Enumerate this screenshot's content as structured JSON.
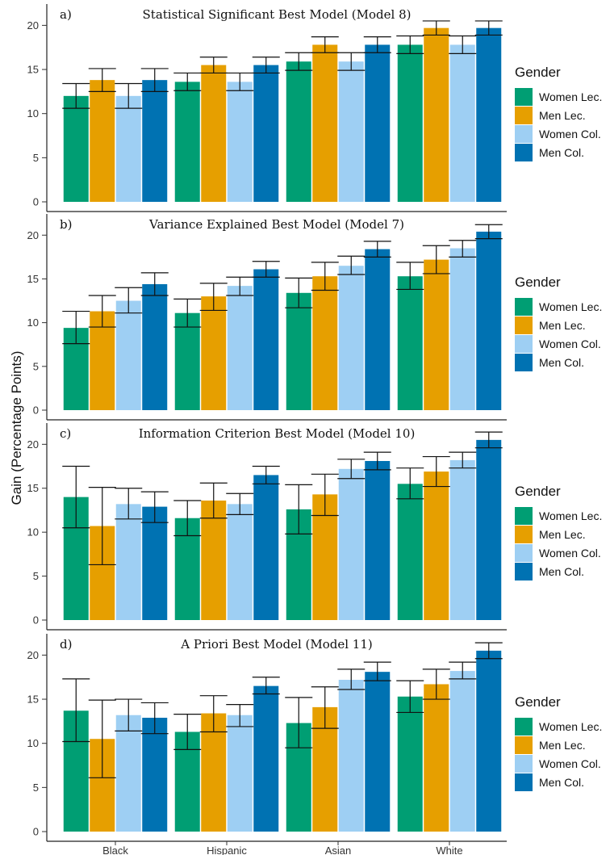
{
  "y_axis_label": "Gain (Percentage Points)",
  "legend": {
    "title": "Gender",
    "entries": [
      {
        "label": "Women Lec.",
        "color": "#009E73"
      },
      {
        "label": "Men Lec.",
        "color": "#E69F00"
      },
      {
        "label": "Women Col.",
        "color": "#9ECFF3"
      },
      {
        "label": "Men Col.",
        "color": "#0072B2"
      }
    ]
  },
  "chart_data": [
    {
      "type": "bar",
      "panel": "a)",
      "title": "Statistical Significant Best Model (Model 8)",
      "categories": [
        "Black",
        "Hispanic",
        "Asian",
        "White"
      ],
      "ylim": [
        0,
        21.5
      ],
      "yticks": [
        0,
        5,
        10,
        15,
        20
      ],
      "series": [
        {
          "name": "Women Lec.",
          "values": [
            12.0,
            13.6,
            15.9,
            17.8
          ],
          "err_low": [
            10.6,
            12.6,
            14.9,
            16.8
          ],
          "err_high": [
            13.4,
            14.6,
            16.9,
            18.8
          ]
        },
        {
          "name": "Men Lec.",
          "values": [
            13.8,
            15.5,
            17.8,
            19.7
          ],
          "err_low": [
            12.5,
            14.6,
            16.9,
            18.9
          ],
          "err_high": [
            15.1,
            16.4,
            18.7,
            20.5
          ]
        },
        {
          "name": "Women Col.",
          "values": [
            12.0,
            13.6,
            15.9,
            17.8
          ],
          "err_low": [
            10.6,
            12.6,
            14.9,
            16.8
          ],
          "err_high": [
            13.4,
            14.6,
            16.9,
            18.8
          ]
        },
        {
          "name": "Men Col.",
          "values": [
            13.8,
            15.5,
            17.8,
            19.7
          ],
          "err_low": [
            12.5,
            14.6,
            16.9,
            18.9
          ],
          "err_high": [
            15.1,
            16.4,
            18.7,
            20.5
          ]
        }
      ]
    },
    {
      "type": "bar",
      "panel": "b)",
      "title": "Variance Explained Best Model (Model 7)",
      "categories": [
        "Black",
        "Hispanic",
        "Asian",
        "White"
      ],
      "ylim": [
        0,
        21.5
      ],
      "yticks": [
        0,
        5,
        10,
        15,
        20
      ],
      "series": [
        {
          "name": "Women Lec.",
          "values": [
            9.4,
            11.1,
            13.4,
            15.3
          ],
          "err_low": [
            7.6,
            9.5,
            11.7,
            13.8
          ],
          "err_high": [
            11.3,
            12.7,
            15.1,
            16.9
          ]
        },
        {
          "name": "Men Lec.",
          "values": [
            11.3,
            13.0,
            15.3,
            17.2
          ],
          "err_low": [
            9.5,
            11.4,
            13.7,
            15.6
          ],
          "err_high": [
            13.1,
            14.5,
            16.9,
            18.8
          ]
        },
        {
          "name": "Women Col.",
          "values": [
            12.5,
            14.2,
            16.5,
            18.5
          ],
          "err_low": [
            11.1,
            13.1,
            15.5,
            17.5
          ],
          "err_high": [
            14.0,
            15.2,
            17.6,
            19.4
          ]
        },
        {
          "name": "Men Col.",
          "values": [
            14.4,
            16.1,
            18.4,
            20.4
          ],
          "err_low": [
            13.1,
            15.2,
            17.5,
            19.6
          ],
          "err_high": [
            15.7,
            17.0,
            19.3,
            21.2
          ]
        }
      ]
    },
    {
      "type": "bar",
      "panel": "c)",
      "title": "Information Criterion Best Model (Model 10)",
      "categories": [
        "Black",
        "Hispanic",
        "Asian",
        "White"
      ],
      "ylim": [
        0,
        21.5
      ],
      "yticks": [
        0,
        5,
        10,
        15,
        20
      ],
      "series": [
        {
          "name": "Women Lec.",
          "values": [
            14.0,
            11.6,
            12.6,
            15.5
          ],
          "err_low": [
            10.5,
            9.6,
            9.8,
            13.8
          ],
          "err_high": [
            17.5,
            13.6,
            15.4,
            17.3
          ]
        },
        {
          "name": "Men Lec.",
          "values": [
            10.7,
            13.6,
            14.3,
            16.9
          ],
          "err_low": [
            6.3,
            11.6,
            11.9,
            15.2
          ],
          "err_high": [
            15.1,
            15.6,
            16.6,
            18.6
          ]
        },
        {
          "name": "Women Col.",
          "values": [
            13.2,
            13.2,
            17.2,
            18.2
          ],
          "err_low": [
            11.5,
            12.0,
            16.1,
            17.3
          ],
          "err_high": [
            15.0,
            14.4,
            18.3,
            19.1
          ]
        },
        {
          "name": "Men Col.",
          "values": [
            12.9,
            16.5,
            18.1,
            20.5
          ],
          "err_low": [
            11.1,
            15.5,
            17.1,
            19.6
          ],
          "err_high": [
            14.6,
            17.5,
            19.1,
            21.4
          ]
        }
      ]
    },
    {
      "type": "bar",
      "panel": "d)",
      "title": "A Priori Best Model (Model 11)",
      "categories": [
        "Black",
        "Hispanic",
        "Asian",
        "White"
      ],
      "ylim": [
        0,
        21.5
      ],
      "yticks": [
        0,
        5,
        10,
        15,
        20
      ],
      "series": [
        {
          "name": "Women Lec.",
          "values": [
            13.7,
            11.3,
            12.3,
            15.3
          ],
          "err_low": [
            10.2,
            9.3,
            9.5,
            13.5
          ],
          "err_high": [
            17.3,
            13.3,
            15.2,
            17.1
          ]
        },
        {
          "name": "Men Lec.",
          "values": [
            10.5,
            13.4,
            14.1,
            16.7
          ],
          "err_low": [
            6.1,
            11.3,
            11.7,
            15.0
          ],
          "err_high": [
            14.9,
            15.4,
            16.4,
            18.4
          ]
        },
        {
          "name": "Women Col.",
          "values": [
            13.2,
            13.2,
            17.2,
            18.2
          ],
          "err_low": [
            11.4,
            11.9,
            16.1,
            17.3
          ],
          "err_high": [
            15.0,
            14.4,
            18.4,
            19.2
          ]
        },
        {
          "name": "Men Col.",
          "values": [
            12.9,
            16.5,
            18.1,
            20.5
          ],
          "err_low": [
            11.1,
            15.6,
            17.1,
            19.6
          ],
          "err_high": [
            14.6,
            17.5,
            19.2,
            21.4
          ]
        }
      ]
    }
  ]
}
